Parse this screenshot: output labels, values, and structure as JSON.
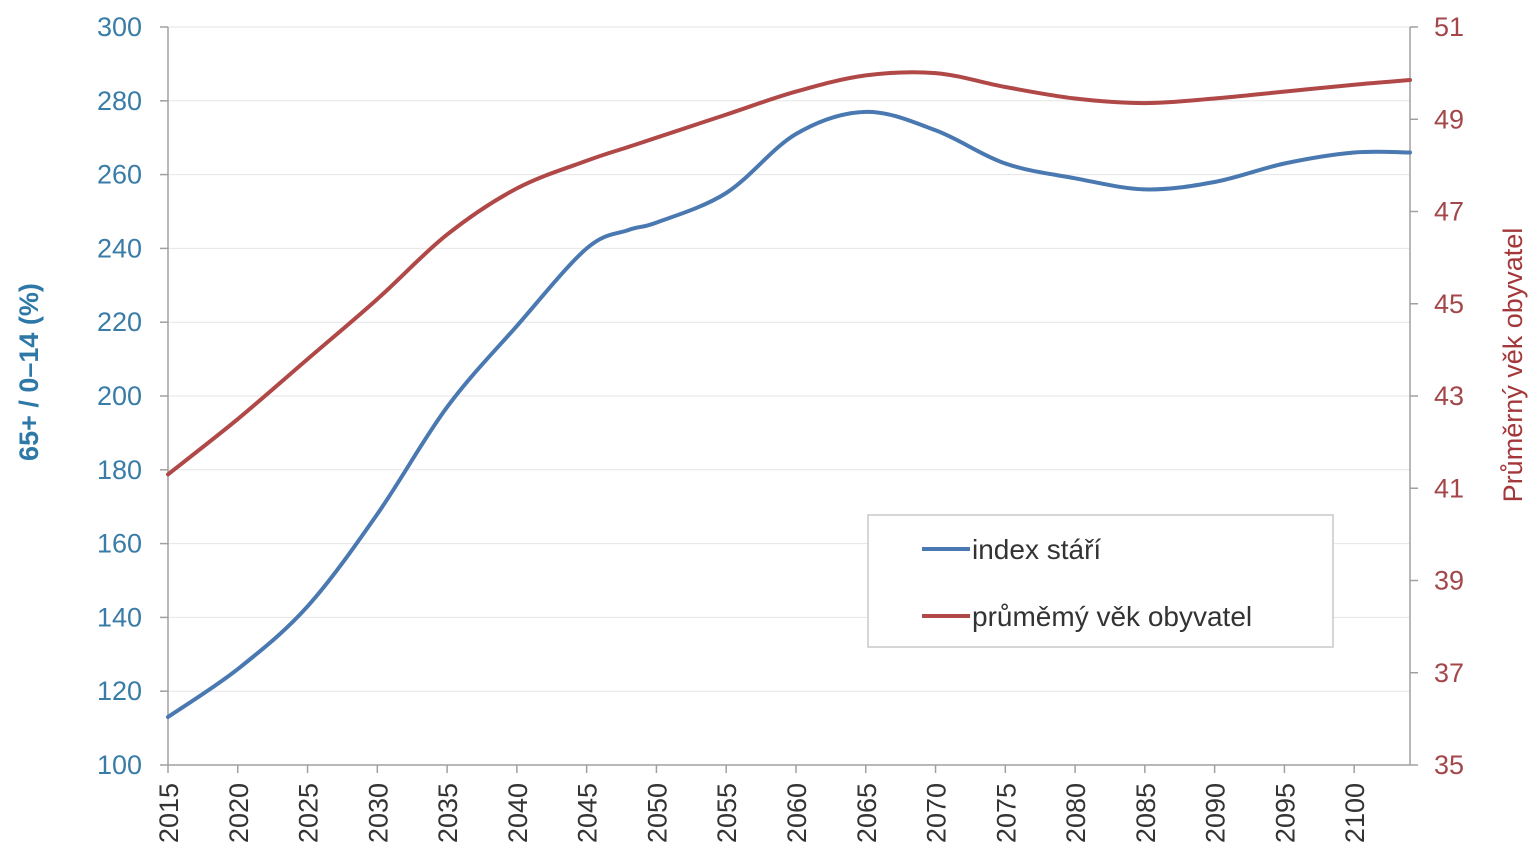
{
  "chart_data": {
    "type": "line",
    "x": [
      2015,
      2020,
      2025,
      2030,
      2035,
      2040,
      2045,
      2048,
      2050,
      2055,
      2060,
      2065,
      2070,
      2075,
      2080,
      2085,
      2090,
      2095,
      2100,
      2104
    ],
    "series": [
      {
        "name": "index stáří",
        "axis": "left",
        "color": "#4a78b0",
        "values": [
          113,
          126,
          143,
          168,
          197,
          219,
          240,
          245,
          247,
          255,
          271,
          277,
          272,
          263,
          259,
          256,
          258,
          263,
          266,
          266
        ]
      },
      {
        "name": "průměrný věk obyvatel",
        "axis": "right",
        "color": "#b04848",
        "values": [
          41.3,
          42.5,
          43.8,
          45.1,
          46.5,
          47.5,
          48.1,
          48.4,
          48.6,
          49.1,
          49.6,
          49.95,
          50.0,
          49.7,
          49.45,
          49.35,
          49.45,
          49.6,
          49.75,
          49.85
        ]
      }
    ],
    "x_ticks": [
      "2015",
      "2020",
      "2025",
      "2030",
      "2035",
      "2040",
      "2045",
      "2050",
      "2055",
      "2060",
      "2065",
      "2070",
      "2075",
      "2080",
      "2085",
      "2090",
      "2095",
      "2100"
    ],
    "x_tick_values": [
      2015,
      2020,
      2025,
      2030,
      2035,
      2040,
      2045,
      2050,
      2055,
      2060,
      2065,
      2070,
      2075,
      2080,
      2085,
      2090,
      2095,
      2100
    ],
    "xlim": [
      2015,
      2104
    ],
    "ylim_left": [
      100,
      300
    ],
    "y_ticks_left": [
      "300",
      "280",
      "260",
      "240",
      "220",
      "200",
      "180",
      "160",
      "140",
      "120",
      "100"
    ],
    "y_tick_values_left": [
      300,
      280,
      260,
      240,
      220,
      200,
      180,
      160,
      140,
      120,
      100
    ],
    "ylim_right": [
      35,
      51
    ],
    "y_ticks_right": [
      "51",
      "49",
      "47",
      "45",
      "43",
      "41",
      "39",
      "37",
      "35"
    ],
    "y_tick_values_right": [
      51,
      49,
      47,
      45,
      43,
      41,
      39,
      37,
      35
    ],
    "ylabel_left": "65+ / 0–14 (%)",
    "ylabel_right": "Průměrný věk obyvatel",
    "legend": {
      "placement": "center-right",
      "entries": [
        "index stáří",
        "průměmý věk obyvatel"
      ]
    },
    "grid": true,
    "grid_color": "#e6e6e6",
    "axis_color": "#a0a0a0"
  }
}
